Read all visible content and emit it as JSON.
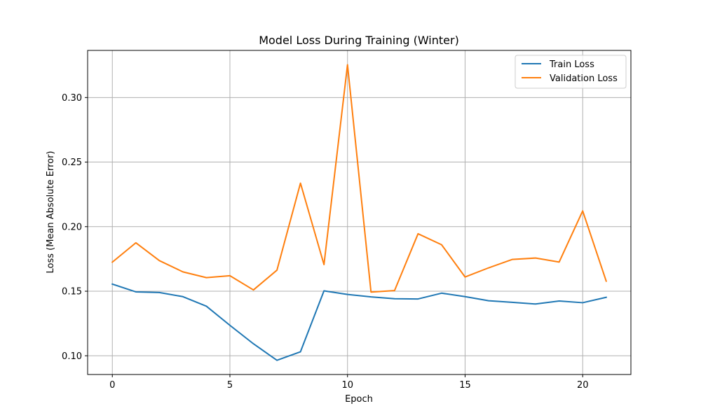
{
  "chart_data": {
    "type": "line",
    "title": "Model Loss During Training (Winter)",
    "xlabel": "Epoch",
    "ylabel": "Loss (Mean Absolute Error)",
    "x": [
      0,
      1,
      2,
      3,
      4,
      5,
      6,
      7,
      8,
      9,
      10,
      11,
      12,
      13,
      14,
      15,
      16,
      17,
      18,
      19,
      20,
      21
    ],
    "xlim": [
      -1.05,
      22.05
    ],
    "ylim": [
      0.0855,
      0.3365
    ],
    "xticks": [
      0,
      5,
      10,
      15,
      20
    ],
    "xtick_labels": [
      "0",
      "5",
      "10",
      "15",
      "20"
    ],
    "yticks": [
      0.1,
      0.15,
      0.2,
      0.25,
      0.3
    ],
    "ytick_labels": [
      "0.10",
      "0.15",
      "0.20",
      "0.25",
      "0.30"
    ],
    "grid": true,
    "legend_position": "top-right",
    "series": [
      {
        "name": "Train Loss",
        "color": "#1f77b4",
        "values": [
          0.1555,
          0.1495,
          0.149,
          0.1458,
          0.1384,
          0.1236,
          0.1093,
          0.0965,
          0.1031,
          0.1503,
          0.1475,
          0.1456,
          0.1442,
          0.144,
          0.1485,
          0.1458,
          0.1426,
          0.1414,
          0.1401,
          0.1424,
          0.1411,
          0.1453
        ]
      },
      {
        "name": "Validation Loss",
        "color": "#ff7f0e",
        "values": [
          0.1725,
          0.1875,
          0.1737,
          0.165,
          0.1605,
          0.162,
          0.151,
          0.1663,
          0.2337,
          0.1706,
          0.3254,
          0.1493,
          0.1505,
          0.1945,
          0.186,
          0.161,
          0.1681,
          0.1746,
          0.1757,
          0.1726,
          0.2122,
          0.1578
        ]
      }
    ]
  }
}
